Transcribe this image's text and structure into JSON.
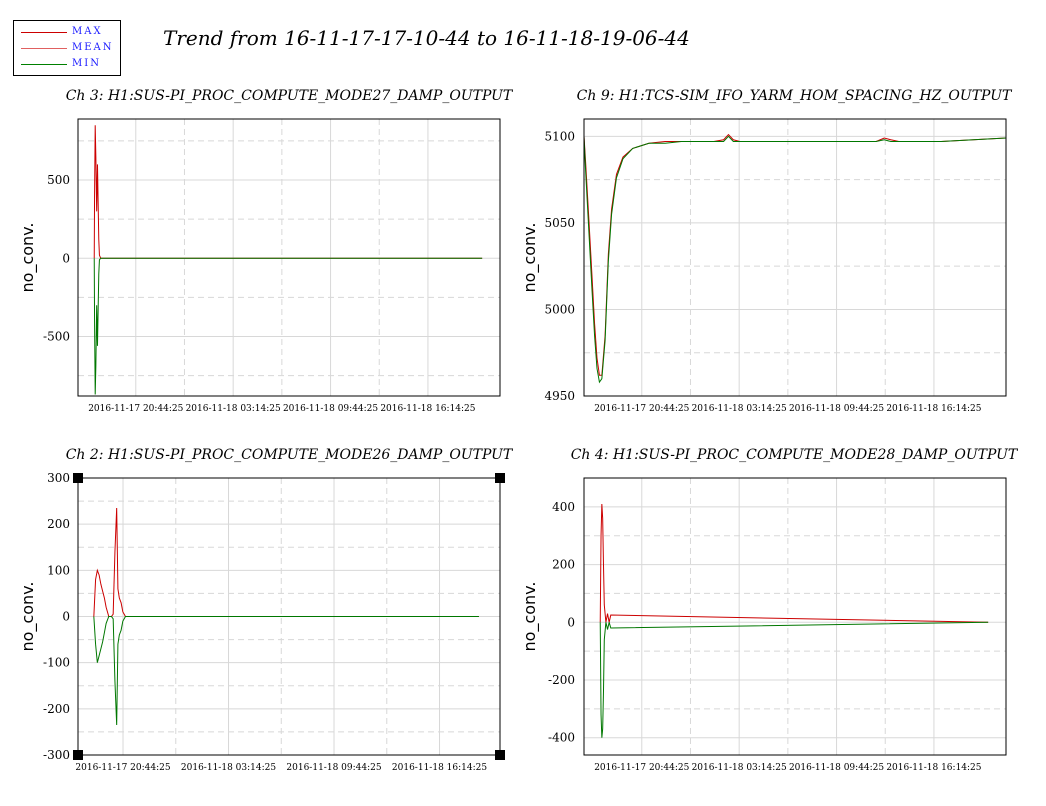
{
  "title": "Trend from 16-11-17-17-10-44 to 16-11-18-19-06-44",
  "legend": [
    {
      "label": "MAX",
      "color": "#cc0000"
    },
    {
      "label": "MEAN",
      "color": "#e06060"
    },
    {
      "label": "MIN",
      "color": "#008000"
    }
  ],
  "colors": {
    "max": "#cc0000",
    "min": "#007700",
    "grid": "#d8d8d8"
  },
  "chart_data": [
    {
      "type": "line",
      "title": "Ch 3: H1:SUS-PI_PROC_COMPUTE_MODE27_DAMP_OUTPUT",
      "ylabel": "no_conv.",
      "xlabel": "",
      "ylim": [
        -880,
        890
      ],
      "yticks": [
        {
          "v": 500,
          "label": "500"
        },
        {
          "v": 0,
          "label": "0"
        },
        {
          "v": -500,
          "label": "-500"
        }
      ],
      "ygrid_minor": [
        750,
        250,
        -250,
        -750
      ],
      "xlim": [
        0,
        26
      ],
      "xticks": [
        {
          "v": 3.56,
          "label": "2016-11-17 20:44:25"
        },
        {
          "v": 9.56,
          "label": "2016-11-18 03:14:25"
        },
        {
          "v": 15.56,
          "label": "2016-11-18 09:44:25"
        },
        {
          "v": 21.56,
          "label": "2016-11-18 16:14:25"
        }
      ],
      "xgrid_minor": [
        6.56,
        12.56,
        18.56
      ],
      "grid": true,
      "series": [
        {
          "name": "MAX",
          "x": [
            1.0,
            1.02,
            1.06,
            1.1,
            1.15,
            1.2,
            1.28,
            1.32,
            1.4,
            1.6,
            24.9
          ],
          "y": [
            0,
            400,
            850,
            650,
            300,
            600,
            120,
            20,
            0,
            0,
            0
          ]
        },
        {
          "name": "MIN",
          "x": [
            1.0,
            1.02,
            1.06,
            1.1,
            1.15,
            1.2,
            1.28,
            1.32,
            1.4,
            1.6,
            24.9
          ],
          "y": [
            0,
            -400,
            -870,
            -690,
            -300,
            -560,
            -100,
            -10,
            0,
            0,
            0
          ]
        }
      ]
    },
    {
      "type": "line",
      "title": "Ch 9: H1:TCS-SIM_IFO_YARM_HOM_SPACING_HZ_OUTPUT",
      "ylabel": "no_conv.",
      "xlabel": "",
      "ylim": [
        4950,
        5110
      ],
      "yticks": [
        {
          "v": 5100,
          "label": "5100"
        },
        {
          "v": 5050,
          "label": "5050"
        },
        {
          "v": 5000,
          "label": "5000"
        },
        {
          "v": 4950,
          "label": "4950"
        }
      ],
      "ygrid_minor": [
        5075,
        5025,
        4975
      ],
      "xlim": [
        0,
        26
      ],
      "xticks": [
        {
          "v": 3.56,
          "label": "2016-11-17 20:44:25"
        },
        {
          "v": 9.56,
          "label": "2016-11-18 03:14:25"
        },
        {
          "v": 15.56,
          "label": "2016-11-18 09:44:25"
        },
        {
          "v": 21.56,
          "label": "2016-11-18 16:14:25"
        }
      ],
      "xgrid_minor": [
        6.56,
        12.56,
        18.56
      ],
      "grid": true,
      "series": [
        {
          "name": "MAX",
          "x": [
            0,
            0.1,
            0.3,
            0.5,
            0.65,
            0.8,
            0.95,
            1.1,
            1.3,
            1.5,
            1.7,
            2.0,
            2.4,
            3.0,
            4.0,
            5.0,
            6.0,
            8.0,
            8.6,
            8.9,
            9.2,
            9.6,
            10.2,
            12.0,
            14.0,
            18.0,
            18.5,
            18.9,
            19.4,
            22.0,
            24.0,
            26.0
          ],
          "y": [
            5100,
            5085,
            5052,
            5018,
            4992,
            4972,
            4962,
            4962,
            4985,
            5032,
            5058,
            5078,
            5088,
            5093,
            5096,
            5097,
            5097,
            5097,
            5098,
            5101,
            5098,
            5097,
            5097,
            5097,
            5097,
            5097,
            5099,
            5098,
            5097,
            5097,
            5098,
            5099
          ]
        },
        {
          "name": "MIN",
          "x": [
            0,
            0.1,
            0.3,
            0.5,
            0.65,
            0.8,
            0.95,
            1.1,
            1.3,
            1.5,
            1.7,
            2.0,
            2.4,
            3.0,
            4.0,
            5.0,
            6.0,
            8.0,
            8.6,
            8.9,
            9.2,
            9.6,
            10.2,
            12.0,
            14.0,
            18.0,
            18.5,
            18.9,
            19.4,
            22.0,
            24.0,
            26.0
          ],
          "y": [
            5100,
            5080,
            5045,
            5010,
            4985,
            4966,
            4958,
            4960,
            4982,
            5028,
            5055,
            5076,
            5087,
            5093,
            5096,
            5096,
            5097,
            5097,
            5097,
            5100,
            5097,
            5097,
            5097,
            5097,
            5097,
            5097,
            5098,
            5097,
            5097,
            5097,
            5098,
            5099
          ]
        }
      ]
    },
    {
      "type": "line",
      "title": "Ch 2: H1:SUS-PI_PROC_COMPUTE_MODE26_DAMP_OUTPUT",
      "ylabel": "no_conv.",
      "xlabel": "",
      "ylim": [
        -300,
        300
      ],
      "yticks": [
        {
          "v": 300,
          "label": "300"
        },
        {
          "v": 200,
          "label": "200"
        },
        {
          "v": 100,
          "label": "100"
        },
        {
          "v": 0,
          "label": "0"
        },
        {
          "v": -100,
          "label": "-100"
        },
        {
          "v": -200,
          "label": "-200"
        },
        {
          "v": -300,
          "label": "-300"
        }
      ],
      "ygrid_minor": [
        250,
        150,
        50,
        -50,
        -150,
        -250
      ],
      "xlim": [
        0,
        24
      ],
      "xticks": [
        {
          "v": 2.56,
          "label": "2016-11-17 20:44:25"
        },
        {
          "v": 8.56,
          "label": "2016-11-18 03:14:25"
        },
        {
          "v": 14.56,
          "label": "2016-11-18 09:44:25"
        },
        {
          "v": 20.56,
          "label": "2016-11-18 16:14:25"
        }
      ],
      "xgrid_minor": [
        5.56,
        11.56,
        17.56
      ],
      "grid": true,
      "series": [
        {
          "name": "MAX",
          "x": [
            0.9,
            1.0,
            1.1,
            1.2,
            1.3,
            1.4,
            1.5,
            1.6,
            1.75,
            1.9,
            2.0,
            2.1,
            2.2,
            2.27,
            2.35,
            2.45,
            2.55,
            2.7,
            3.0,
            22.8
          ],
          "y": [
            0,
            80,
            100,
            90,
            70,
            55,
            40,
            20,
            0,
            0,
            5,
            140,
            235,
            60,
            40,
            30,
            10,
            0,
            0,
            0
          ]
        },
        {
          "name": "MIN",
          "x": [
            0.9,
            1.0,
            1.1,
            1.2,
            1.3,
            1.4,
            1.5,
            1.6,
            1.75,
            1.9,
            2.0,
            2.1,
            2.2,
            2.27,
            2.35,
            2.45,
            2.55,
            2.7,
            3.0,
            22.8
          ],
          "y": [
            0,
            -60,
            -100,
            -85,
            -70,
            -55,
            -35,
            -15,
            0,
            0,
            -5,
            -140,
            -235,
            -60,
            -40,
            -30,
            -10,
            0,
            0,
            0
          ]
        }
      ]
    },
    {
      "type": "line",
      "title": "Ch 4: H1:SUS-PI_PROC_COMPUTE_MODE28_DAMP_OUTPUT",
      "ylabel": "no_conv.",
      "xlabel": "",
      "ylim": [
        -460,
        500
      ],
      "yticks": [
        {
          "v": 400,
          "label": "400"
        },
        {
          "v": 200,
          "label": "200"
        },
        {
          "v": 0,
          "label": "0"
        },
        {
          "v": -200,
          "label": "-200"
        },
        {
          "v": -400,
          "label": "-400"
        }
      ],
      "ygrid_minor": [
        300,
        100,
        -100,
        -300
      ],
      "xlim": [
        0,
        26
      ],
      "xticks": [
        {
          "v": 3.56,
          "label": "2016-11-17 20:44:25"
        },
        {
          "v": 9.56,
          "label": "2016-11-18 03:14:25"
        },
        {
          "v": 15.56,
          "label": "2016-11-18 09:44:25"
        },
        {
          "v": 21.56,
          "label": "2016-11-18 16:14:25"
        }
      ],
      "xgrid_minor": [
        6.56,
        12.56,
        18.56
      ],
      "grid": true,
      "series": [
        {
          "name": "MAX",
          "x": [
            1.0,
            1.05,
            1.1,
            1.15,
            1.2,
            1.25,
            1.3,
            1.35,
            1.45,
            1.55,
            1.65,
            24.9
          ],
          "y": [
            0,
            300,
            410,
            360,
            200,
            60,
            30,
            0,
            30,
            0,
            25,
            0
          ]
        },
        {
          "name": "MIN",
          "x": [
            1.0,
            1.05,
            1.1,
            1.15,
            1.2,
            1.25,
            1.3,
            1.35,
            1.45,
            1.55,
            1.65,
            24.9
          ],
          "y": [
            0,
            -320,
            -400,
            -370,
            -240,
            -60,
            -30,
            0,
            -25,
            0,
            -20,
            0
          ]
        }
      ]
    }
  ]
}
